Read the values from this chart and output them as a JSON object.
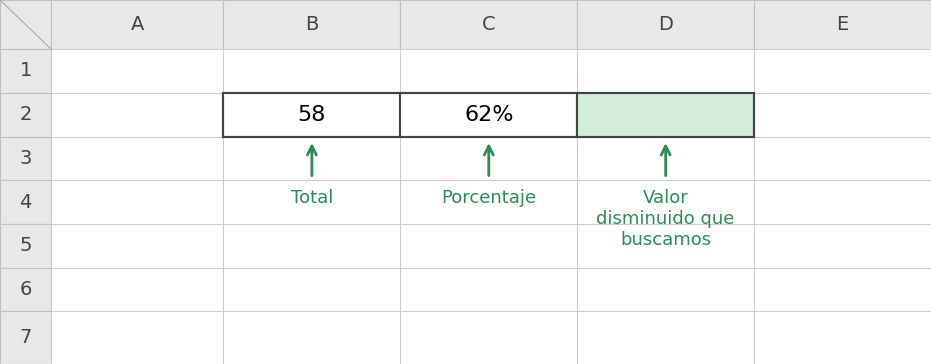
{
  "background_color": "#ffffff",
  "header_bg": "#e8e8e8",
  "cell_border": "#c0c0c0",
  "col_headers": [
    "A",
    "B",
    "C",
    "D",
    "E"
  ],
  "row_headers": [
    "1",
    "2",
    "3",
    "4",
    "5",
    "6",
    "7"
  ],
  "cell_b2": "58",
  "cell_c2": "62%",
  "cell_d2_color": "#d4edda",
  "text_color_green": "#2e8b57",
  "label_total": "Total",
  "label_porcentaje": "Porcentaje",
  "label_valor": "Valor\ndisminuido que\nbuscamos",
  "header_font_size": 14,
  "cell_font_size": 16,
  "label_font_size": 13
}
